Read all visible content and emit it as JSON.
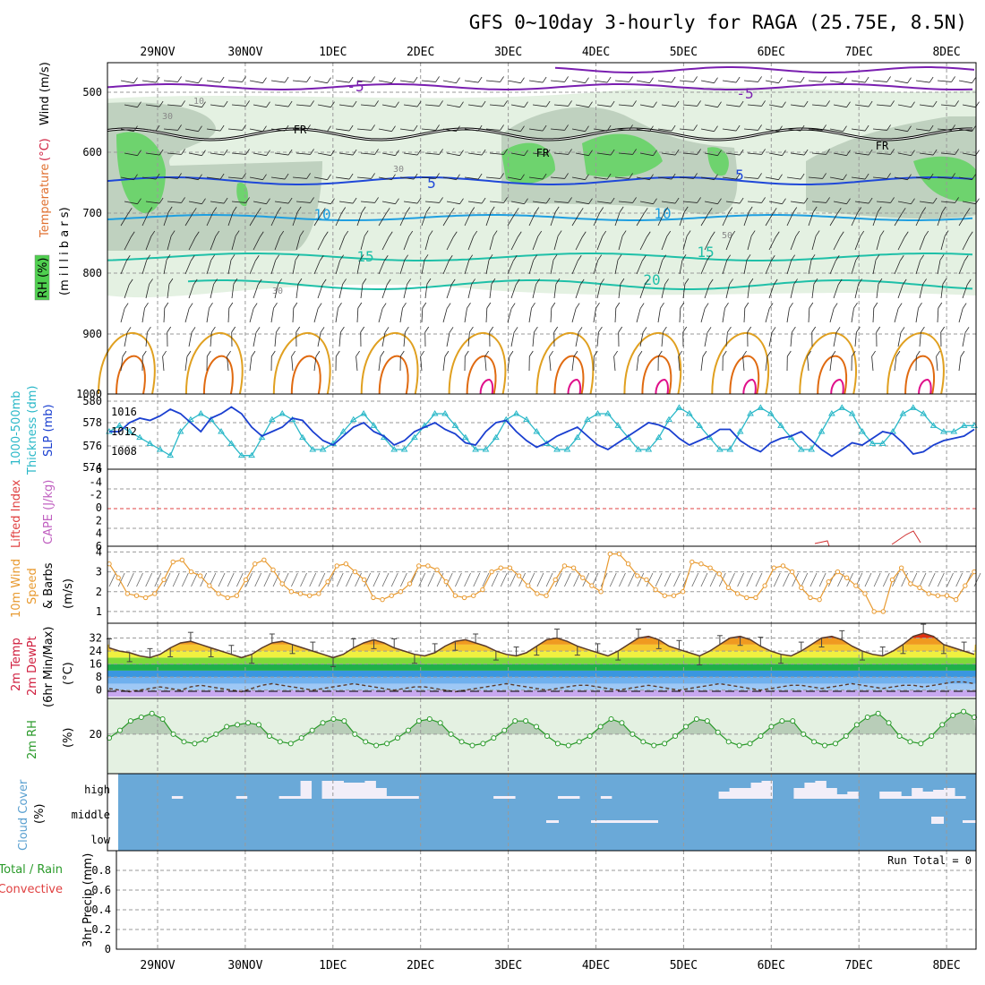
{
  "title": "GFS 0~10day 3-hourly for RAGA (25.75E, 8.5N)",
  "run_total": "Run Total = 0",
  "colors": {
    "rh_fill_light": "#e4f1e2",
    "rh_fill_mid": "#b9cbb9",
    "rh_fill_high": "#6ed36e",
    "temp_neg": "#7a1fb0",
    "temp_5": "#1f48d8",
    "temp_10": "#1f9fe0",
    "temp_15_20": "#1fc0a8",
    "temp_25": "#e0a020",
    "temp_30": "#e06a10",
    "temp_35": "#e0108a",
    "slp": "#1a3fd0",
    "thickness": "#2ab8c8",
    "lifted_zero": "#e04040",
    "wind10m": "#e89a30",
    "rh2m": "#2a9a2a",
    "cloud_bg": "#6aa9d8",
    "cloud_fill": "#f2eef8"
  },
  "panels": {
    "upper": {
      "labels": {
        "temperature": "Temperature",
        "temperature_unit": "(°C)",
        "wind": "Wind (m/s)",
        "rh": "RH (%)",
        "pressure": "(m i l l i b a r s)"
      },
      "yticks": [
        "500",
        "600",
        "700",
        "800",
        "900",
        "1000"
      ]
    },
    "slp": {
      "labels": {
        "thickness": "1000-500mb",
        "thickness2": "Thickness (dm)",
        "slp": "SLP (mb)"
      },
      "left_ticks": [
        "580",
        "578",
        "576",
        "574"
      ],
      "right_ticks": [
        "1016",
        "1012",
        "1008"
      ]
    },
    "cape": {
      "labels": {
        "lifted": "Lifted Index",
        "cape": "CAPE (J/kg)"
      },
      "yticks": [
        "-6",
        "-4",
        "-2",
        "0",
        "2",
        "4",
        "6"
      ]
    },
    "wind": {
      "labels": {
        "line1": "10m Wind",
        "line2": "Speed",
        "line3": "& Barbs",
        "unit": "(m/s)"
      },
      "yticks": [
        "4",
        "3",
        "2",
        "1"
      ]
    },
    "temp": {
      "labels": {
        "line1": "2m Temp",
        "line2": "2m DewPt",
        "line3": "(6hr Min/Max)",
        "unit": "(°C)"
      },
      "yticks": [
        "32",
        "24",
        "16",
        "8",
        "0"
      ]
    },
    "rh2m": {
      "labels": {
        "line1": "2m RH",
        "unit": "(%)"
      },
      "yticks": [
        "20"
      ]
    },
    "cloud": {
      "labels": {
        "line1": "Cloud Cover",
        "unit": "(%)"
      },
      "levels": [
        "high",
        "middle",
        "low"
      ]
    },
    "precip": {
      "labels": {
        "line1": "Total / Rain",
        "line2": "Convective",
        "line3": "3hr Precip (mm)"
      },
      "yticks": [
        "0.8",
        "0.6",
        "0.4",
        "0.2",
        "0"
      ]
    }
  },
  "chart_data": {
    "type": "line",
    "dates": [
      "29NOV",
      "30NOV",
      "1DEC",
      "2DEC",
      "3DEC",
      "4DEC",
      "5DEC",
      "6DEC",
      "7DEC",
      "8DEC"
    ],
    "contour_labels": [
      "-5",
      "-5",
      "5",
      "5",
      "10",
      "10",
      "15",
      "15",
      "20",
      "FR",
      "FR",
      "FR",
      "30",
      "30",
      "50",
      "30",
      "10"
    ],
    "slp_mb": [
      1012,
      1012,
      1014,
      1015,
      1014.5,
      1015.5,
      1017,
      1016,
      1014,
      1012,
      1015,
      1016,
      1017.5,
      1016,
      1013,
      1011,
      1012,
      1013,
      1015,
      1014.5,
      1012,
      1010,
      1009,
      1011,
      1013,
      1014,
      1012,
      1011,
      1009,
      1010,
      1012,
      1013,
      1014,
      1012.5,
      1011.5,
      1009.5,
      1009,
      1012,
      1014,
      1014.5,
      1012,
      1010,
      1008.5,
      1009.5,
      1011,
      1012,
      1013,
      1011,
      1009,
      1008,
      1009.5,
      1011,
      1012.5,
      1014,
      1013.5,
      1012.5,
      1010.5,
      1009,
      1010,
      1011,
      1012.5,
      1012.5,
      1010,
      1008.5,
      1007.5,
      1009.5,
      1010.5,
      1011,
      1012,
      1010,
      1008,
      1006.5,
      1008,
      1009.5,
      1009,
      1010.5,
      1012,
      1011.5,
      1009.5,
      1007,
      1007.5,
      1009,
      1010,
      1010.5,
      1011,
      1012.5
    ],
    "thickness_dm": [
      577,
      577.5,
      577,
      576.5,
      576,
      575.5,
      575,
      577,
      578,
      578.5,
      578,
      577,
      576,
      575,
      575,
      576.5,
      578,
      578.5,
      578,
      576.5,
      575.5,
      575.5,
      576,
      577,
      578,
      578.5,
      577.5,
      576.5,
      575.5,
      575.5,
      576.5,
      577.5,
      578.5,
      578.5,
      577.5,
      576.5,
      575.5,
      575.5,
      576.5,
      578,
      578.5,
      578,
      577,
      576,
      575.5,
      575.5,
      576.5,
      578,
      578.5,
      578.5,
      577.5,
      576.5,
      575.5,
      575.5,
      576.5,
      578,
      579,
      578.5,
      577.5,
      576.5,
      575.5,
      575.5,
      577,
      578.5,
      579,
      578.5,
      577.5,
      576.5,
      575.5,
      575.5,
      577,
      578.5,
      579,
      578.5,
      577,
      576,
      576,
      577,
      578.5,
      579,
      578.5,
      577.5,
      577,
      577,
      577.5,
      577.5
    ],
    "wind10m_ms": [
      3.4,
      2.7,
      1.9,
      1.8,
      1.7,
      1.9,
      2.6,
      3.5,
      3.6,
      3.0,
      2.8,
      2.3,
      1.9,
      1.7,
      1.8,
      2.6,
      3.4,
      3.6,
      3.1,
      2.4,
      2.0,
      1.9,
      1.8,
      1.9,
      2.5,
      3.3,
      3.4,
      3.0,
      2.6,
      1.7,
      1.6,
      1.8,
      2.0,
      2.4,
      3.3,
      3.3,
      3.1,
      2.5,
      1.8,
      1.7,
      1.8,
      2.1,
      3.0,
      3.2,
      3.2,
      2.8,
      2.3,
      1.9,
      1.8,
      2.6,
      3.3,
      3.2,
      2.7,
      2.3,
      2.0,
      3.9,
      3.9,
      3.4,
      2.8,
      2.6,
      2.1,
      1.8,
      1.8,
      2.0,
      3.5,
      3.4,
      3.2,
      2.9,
      2.2,
      1.9,
      1.7,
      1.7,
      2.3,
      3.2,
      3.3,
      3.0,
      2.2,
      1.7,
      1.6,
      2.5,
      3.0,
      2.7,
      2.3,
      1.9,
      1.0,
      1.0,
      2.6,
      3.2,
      2.4,
      2.2,
      1.9,
      1.8,
      1.8,
      1.6,
      2.3,
      3.0
    ],
    "temp2m_c": [
      26,
      24,
      23,
      21,
      20,
      22,
      26,
      29,
      30,
      28,
      26,
      24,
      22,
      20,
      22,
      26,
      29,
      30,
      28,
      26,
      24,
      22,
      20,
      22,
      26,
      29,
      31,
      29,
      26,
      24,
      22,
      21,
      23,
      27,
      30,
      31,
      29,
      27,
      24,
      22,
      21,
      23,
      27,
      31,
      32,
      30,
      27,
      25,
      23,
      21,
      24,
      28,
      32,
      33,
      31,
      27,
      25,
      23,
      21,
      24,
      28,
      32,
      33,
      31,
      27,
      24,
      22,
      21,
      24,
      28,
      32,
      33,
      31,
      27,
      24,
      22,
      21,
      24,
      28,
      33,
      35,
      33,
      28,
      26,
      24,
      22
    ],
    "dewpt2m_c": [
      1,
      0,
      -1,
      0,
      1,
      2,
      1,
      0,
      2,
      3,
      2,
      1,
      0,
      -1,
      1,
      3,
      4,
      3,
      2,
      1,
      0,
      1,
      2,
      3,
      4,
      3,
      2,
      1,
      0,
      1,
      2,
      2,
      1,
      0,
      -1,
      0,
      1,
      2,
      3,
      4,
      3,
      2,
      1,
      0,
      1,
      2,
      3,
      3,
      2,
      1,
      0,
      1,
      2,
      3,
      2,
      1,
      0,
      1,
      2,
      3,
      4,
      3,
      2,
      1,
      0,
      1,
      2,
      3,
      3,
      2,
      1,
      2,
      3,
      4,
      3,
      2,
      1,
      2,
      3,
      3,
      2,
      3,
      4,
      5,
      5,
      4
    ],
    "rh2m_pct": [
      18,
      22,
      27,
      29,
      31,
      28,
      20,
      16,
      15,
      17,
      20,
      24,
      25,
      26,
      25,
      19,
      16,
      15,
      18,
      22,
      26,
      28,
      27,
      20,
      16,
      14,
      15,
      18,
      22,
      27,
      28,
      26,
      20,
      16,
      14,
      15,
      18,
      22,
      27,
      27,
      24,
      19,
      15,
      14,
      16,
      19,
      24,
      28,
      26,
      20,
      16,
      14,
      15,
      19,
      24,
      28,
      27,
      21,
      16,
      14,
      15,
      19,
      24,
      27,
      27,
      20,
      16,
      14,
      15,
      19,
      25,
      29,
      31,
      26,
      19,
      16,
      15,
      19,
      25,
      30,
      32,
      29
    ],
    "cloud_high_pct": [
      0,
      0,
      0,
      0,
      0,
      3,
      0,
      0,
      0,
      0,
      0,
      3,
      0,
      0,
      0,
      3,
      3,
      20,
      0,
      20,
      20,
      18,
      18,
      20,
      12,
      3,
      3,
      3,
      0,
      0,
      0,
      0,
      0,
      0,
      0,
      3,
      3,
      0,
      0,
      0,
      0,
      3,
      3,
      0,
      0,
      3,
      0,
      0,
      0,
      0,
      0,
      0,
      0,
      0,
      0,
      0,
      8,
      12,
      12,
      18,
      20,
      0,
      0,
      12,
      18,
      20,
      12,
      5,
      8,
      0,
      0,
      8,
      8,
      3,
      12,
      8,
      10,
      12,
      3,
      0
    ],
    "precip_ylim": [
      0,
      1
    ],
    "wind_ylim": [
      0.5,
      4.2
    ],
    "temp_ylim": [
      -4,
      40
    ],
    "rh2m_ylim": [
      0,
      38
    ],
    "slp_ylim": [
      1004,
      1020
    ],
    "thickness_ylim": [
      574,
      580
    ],
    "pressure_ylim": [
      1000,
      450
    ]
  }
}
